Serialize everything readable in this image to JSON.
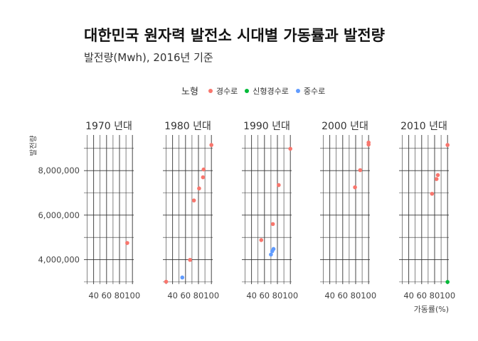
{
  "title": "대한민국 원자력 발전소 시대별 가동률과 발전량",
  "subtitle": "발전량(Mwh), 2016년 기준",
  "legend": {
    "title": "노형",
    "items": [
      {
        "label": "경수로",
        "color": "#F8766D"
      },
      {
        "label": "신형경수로",
        "color": "#00BA38"
      },
      {
        "label": "중수로",
        "color": "#619CFF"
      }
    ]
  },
  "chart_data": {
    "type": "scatter",
    "facet_by": "시대",
    "xlabel": "가동률(%)",
    "ylabel": "발전량",
    "xlim": [
      25,
      102
    ],
    "ylim": [
      2900000,
      9600000
    ],
    "xticks": [
      40,
      60,
      80,
      100
    ],
    "xtick_labels": [
      "40",
      "60",
      "80",
      "100"
    ],
    "yticks": [
      4000000,
      6000000,
      8000000
    ],
    "ytick_labels": [
      "4,000,000",
      "6,000,000",
      "8,000,000"
    ],
    "grid": true,
    "legend_position": "top",
    "panels": [
      {
        "label": "1970 년대",
        "points": [
          {
            "x": 92,
            "y": 4750000,
            "type": "경수로"
          }
        ]
      },
      {
        "label": "1980 년대",
        "points": [
          {
            "x": 30,
            "y": 3010000,
            "type": "경수로"
          },
          {
            "x": 55,
            "y": 3200000,
            "type": "중수로"
          },
          {
            "x": 67,
            "y": 3990000,
            "type": "경수로"
          },
          {
            "x": 73,
            "y": 6660000,
            "type": "경수로"
          },
          {
            "x": 81,
            "y": 7200000,
            "type": "경수로"
          },
          {
            "x": 87,
            "y": 7700000,
            "type": "경수로"
          },
          {
            "x": 88,
            "y": 8050000,
            "type": "경수로"
          },
          {
            "x": 100,
            "y": 9150000,
            "type": "경수로"
          }
        ]
      },
      {
        "label": "1990 년대",
        "points": [
          {
            "x": 55,
            "y": 4880000,
            "type": "경수로"
          },
          {
            "x": 70,
            "y": 4230000,
            "type": "중수로"
          },
          {
            "x": 72,
            "y": 4380000,
            "type": "중수로"
          },
          {
            "x": 74,
            "y": 4480000,
            "type": "중수로"
          },
          {
            "x": 73,
            "y": 5600000,
            "type": "경수로"
          },
          {
            "x": 82,
            "y": 7350000,
            "type": "경수로"
          },
          {
            "x": 100,
            "y": 8980000,
            "type": "경수로"
          }
        ]
      },
      {
        "label": "2000 년대",
        "points": [
          {
            "x": 79,
            "y": 7250000,
            "type": "경수로"
          },
          {
            "x": 87,
            "y": 8020000,
            "type": "경수로"
          },
          {
            "x": 100,
            "y": 9170000,
            "type": "경수로"
          },
          {
            "x": 100,
            "y": 9260000,
            "type": "경수로"
          }
        ]
      },
      {
        "label": "2010 년대",
        "points": [
          {
            "x": 76,
            "y": 6960000,
            "type": "경수로"
          },
          {
            "x": 83,
            "y": 7620000,
            "type": "경수로"
          },
          {
            "x": 85,
            "y": 7800000,
            "type": "경수로"
          },
          {
            "x": 100,
            "y": 9150000,
            "type": "경수로"
          },
          {
            "x": 100,
            "y": 3000000,
            "type": "신형경수로"
          }
        ]
      }
    ]
  }
}
